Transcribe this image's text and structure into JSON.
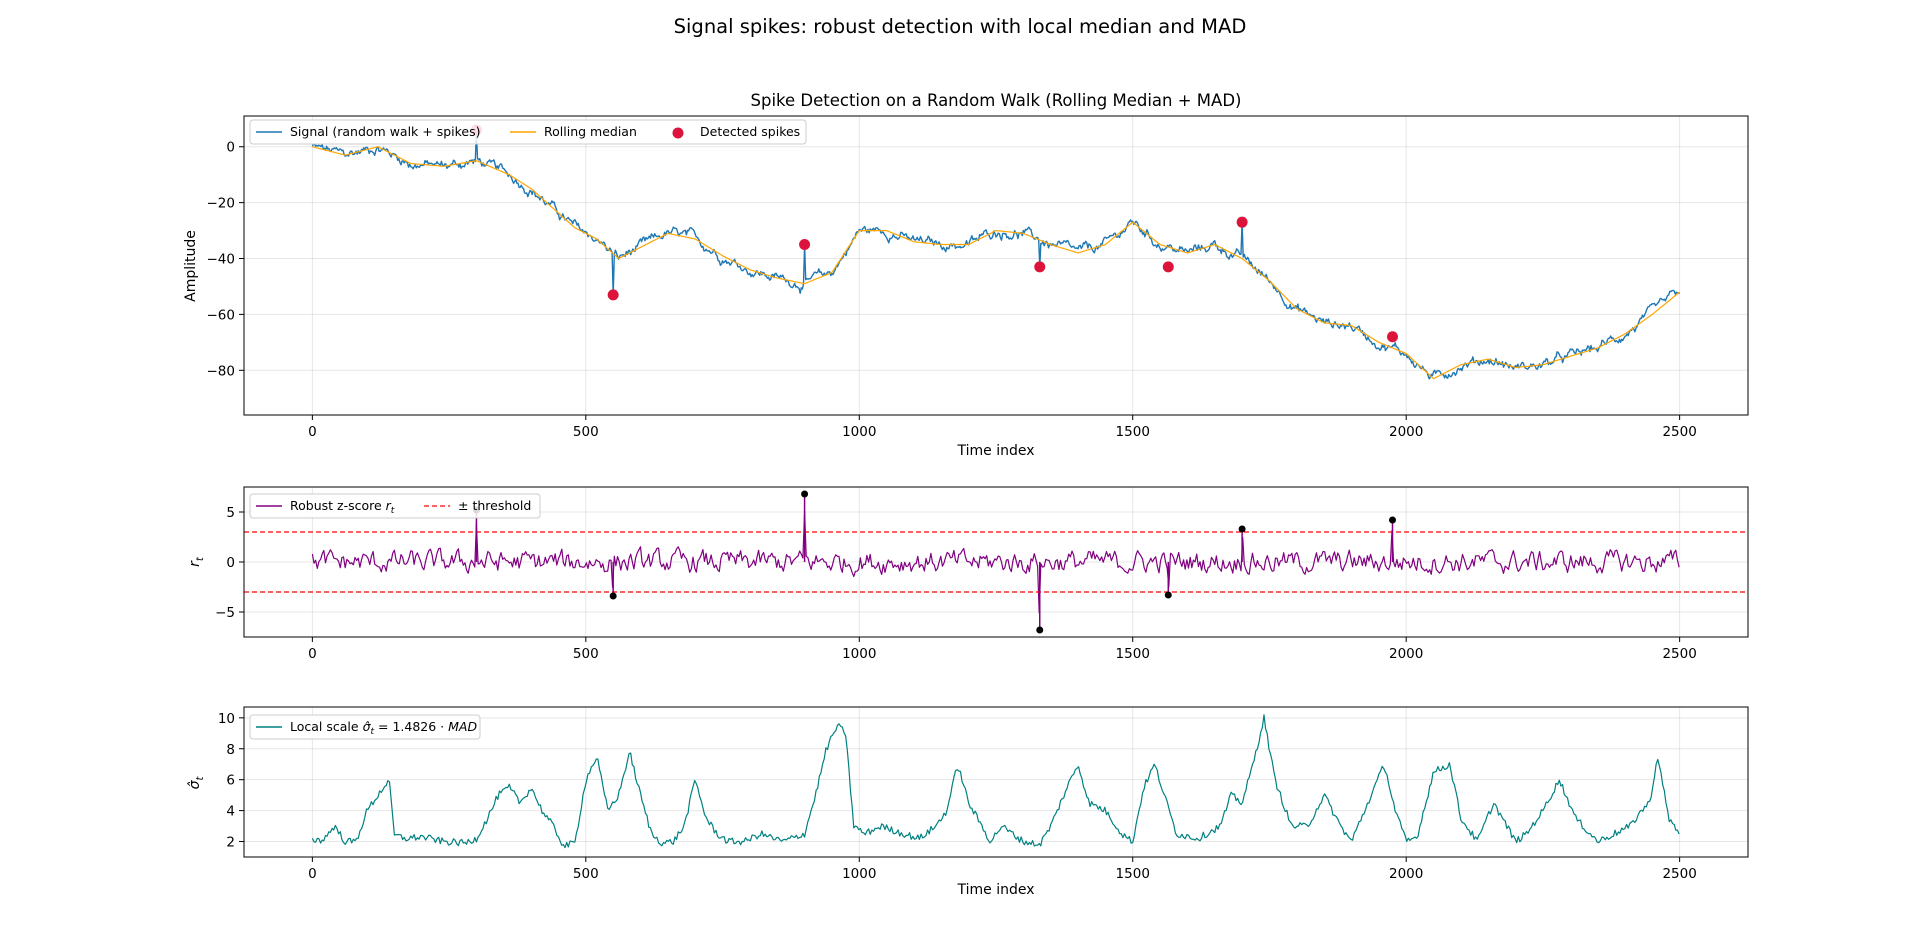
{
  "figure": {
    "suptitle": "Signal spikes: robust detection with local median and MAD"
  },
  "colors": {
    "signal": "#1f77b4",
    "median": "#ffa500",
    "spike": "#dc143c",
    "zscore": "#800080",
    "threshold": "#ff0000",
    "stem_marker": "#000000",
    "scale": "#008080"
  },
  "chart_data": [
    {
      "id": "signal_panel",
      "type": "line",
      "title": "Spike Detection on a Random Walk (Rolling Median + MAD)",
      "xlabel": "Time index",
      "ylabel": "Amplitude",
      "xlim": [
        -125,
        2625
      ],
      "ylim": [
        -96,
        11
      ],
      "xticks": [
        0,
        500,
        1000,
        1500,
        2000,
        2500
      ],
      "yticks": [
        0,
        -20,
        -40,
        -60,
        -80
      ],
      "grid": true,
      "legend": {
        "position": "top-left",
        "columns": 3,
        "entries": [
          "Signal (random walk + spikes)",
          "Rolling median",
          "Detected spikes"
        ]
      },
      "median_anchors": {
        "x": [
          0,
          60,
          120,
          180,
          240,
          300,
          360,
          400,
          440,
          480,
          520,
          560,
          600,
          650,
          700,
          750,
          800,
          850,
          900,
          950,
          1000,
          1050,
          1100,
          1150,
          1200,
          1250,
          1300,
          1350,
          1400,
          1450,
          1500,
          1550,
          1600,
          1650,
          1700,
          1750,
          1800,
          1850,
          1900,
          1950,
          2000,
          2050,
          2100,
          2150,
          2200,
          2250,
          2300,
          2350,
          2400,
          2450,
          2500
        ],
        "y": [
          0,
          -3,
          0,
          -6,
          -7,
          -5,
          -10,
          -15,
          -22,
          -29,
          -33,
          -40,
          -36,
          -31,
          -33,
          -39,
          -44,
          -47,
          -49,
          -45,
          -30,
          -30,
          -34,
          -35,
          -35,
          -30,
          -31,
          -35,
          -38,
          -35,
          -27,
          -35,
          -38,
          -35,
          -40,
          -48,
          -58,
          -63,
          -64,
          -70,
          -74,
          -83,
          -78,
          -76,
          -79,
          -78,
          -75,
          -72,
          -67,
          -60,
          -52
        ]
      },
      "spike_points": [
        {
          "x": 300,
          "y": 6
        },
        {
          "x": 550,
          "y": -53
        },
        {
          "x": 900,
          "y": -35
        },
        {
          "x": 1330,
          "y": -43
        },
        {
          "x": 1565,
          "y": -43
        },
        {
          "x": 1700,
          "y": -27
        },
        {
          "x": 1975,
          "y": -68
        }
      ]
    },
    {
      "id": "zscore_panel",
      "type": "line",
      "xlabel": "",
      "ylabel": "r_t",
      "xlim": [
        -125,
        2625
      ],
      "ylim": [
        -7.5,
        7.5
      ],
      "xticks": [
        0,
        500,
        1000,
        1500,
        2000,
        2500
      ],
      "yticks": [
        5,
        0,
        -5
      ],
      "threshold": 3,
      "grid": true,
      "legend": {
        "position": "top-left",
        "columns": 2,
        "entries": [
          "Robust z-score r_t",
          "± threshold"
        ]
      },
      "spike_points": [
        {
          "x": 300,
          "y": 5.2
        },
        {
          "x": 550,
          "y": -3.4
        },
        {
          "x": 900,
          "y": 6.8
        },
        {
          "x": 1330,
          "y": -6.8
        },
        {
          "x": 1565,
          "y": -3.3
        },
        {
          "x": 1700,
          "y": 3.3
        },
        {
          "x": 1975,
          "y": 4.2
        }
      ]
    },
    {
      "id": "scale_panel",
      "type": "line",
      "xlabel": "Time index",
      "ylabel": "σ̂_t",
      "xlim": [
        -125,
        2625
      ],
      "ylim": [
        1.0,
        10.7
      ],
      "xticks": [
        0,
        500,
        1000,
        1500,
        2000,
        2500
      ],
      "yticks": [
        10,
        8,
        6,
        4,
        2
      ],
      "grid": true,
      "legend": {
        "position": "top-left",
        "columns": 1,
        "entries": [
          "Local scale σ̂_t = 1.4826 · MAD"
        ]
      },
      "scale_anchors": {
        "x": [
          0,
          20,
          40,
          60,
          80,
          100,
          120,
          140,
          150,
          170,
          200,
          240,
          280,
          300,
          320,
          340,
          360,
          380,
          400,
          420,
          440,
          460,
          480,
          500,
          520,
          540,
          560,
          580,
          600,
          620,
          640,
          660,
          680,
          700,
          720,
          740,
          760,
          790,
          820,
          860,
          900,
          920,
          940,
          960,
          975,
          990,
          1010,
          1040,
          1080,
          1110,
          1140,
          1160,
          1180,
          1200,
          1240,
          1260,
          1280,
          1300,
          1330,
          1350,
          1380,
          1400,
          1420,
          1450,
          1480,
          1500,
          1520,
          1540,
          1580,
          1620,
          1660,
          1680,
          1700,
          1720,
          1740,
          1760,
          1790,
          1820,
          1850,
          1880,
          1900,
          1930,
          1960,
          1980,
          2000,
          2020,
          2050,
          2080,
          2100,
          2130,
          2160,
          2200,
          2220,
          2250,
          2280,
          2310,
          2350,
          2380,
          2410,
          2430,
          2445,
          2460,
          2480,
          2500
        ],
        "y": [
          2.1,
          2.1,
          3.0,
          2.0,
          2.0,
          4.0,
          5.0,
          6.0,
          2.4,
          2.2,
          2.3,
          2.0,
          1.9,
          2.2,
          3.5,
          5.0,
          5.5,
          4.5,
          5.5,
          4.0,
          3.0,
          1.7,
          1.9,
          6.0,
          7.5,
          4.0,
          5.0,
          7.8,
          5.0,
          2.5,
          1.9,
          2.0,
          3.0,
          6.0,
          3.5,
          2.5,
          2.0,
          2.0,
          2.5,
          2.0,
          2.5,
          5.0,
          8.0,
          9.5,
          9.0,
          3.0,
          2.5,
          3.0,
          2.5,
          2.2,
          3.0,
          4.0,
          7.0,
          4.5,
          2.0,
          3.0,
          2.5,
          2.0,
          1.8,
          3.0,
          5.5,
          7.0,
          4.5,
          4.0,
          2.5,
          2.0,
          5.5,
          7.0,
          2.5,
          2.2,
          3.0,
          5.0,
          4.5,
          7.0,
          10.0,
          6.0,
          3.0,
          3.0,
          5.0,
          3.0,
          2.0,
          4.5,
          7.0,
          4.0,
          2.0,
          2.3,
          6.5,
          7.0,
          3.5,
          2.0,
          4.5,
          2.0,
          2.5,
          4.0,
          6.0,
          3.5,
          2.0,
          2.5,
          3.0,
          4.0,
          4.5,
          7.5,
          3.5,
          2.5
        ]
      },
      "spike_points": []
    }
  ]
}
